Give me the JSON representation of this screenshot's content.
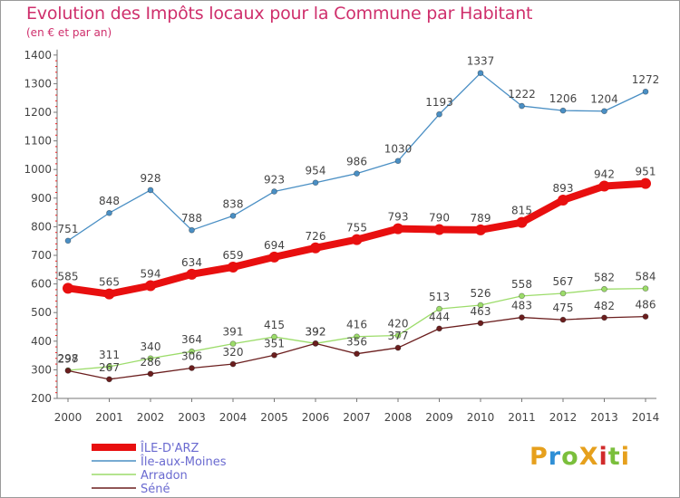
{
  "title": "Evolution des Impôts locaux pour la Commune par Habitant",
  "subtitle": "(en € et par an)",
  "logo": {
    "text": "ProXiti",
    "colors": [
      "#e6a01d",
      "#2f8fd6",
      "#7bbf3c",
      "#e6a01d",
      "#d12b2b",
      "#7bbf3c",
      "#e6a01d"
    ]
  },
  "chart_data": {
    "type": "line",
    "x": [
      "2000",
      "2001",
      "2002",
      "2003",
      "2004",
      "2005",
      "2006",
      "2007",
      "2008",
      "2009",
      "2010",
      "2011",
      "2012",
      "2013",
      "2014"
    ],
    "ylim": [
      200,
      1400
    ],
    "yticks": [
      200,
      300,
      400,
      500,
      600,
      700,
      800,
      900,
      1000,
      1100,
      1200,
      1300,
      1400
    ],
    "grid": false,
    "legend_position": "bottom-left",
    "series": [
      {
        "name": "ÎLE-D'ARZ",
        "color": "#e80f0f",
        "values": [
          585,
          565,
          594,
          634,
          659,
          694,
          726,
          755,
          793,
          790,
          789,
          815,
          893,
          942,
          951
        ]
      },
      {
        "name": "Île-aux-Moines",
        "color": "#4a8fc4",
        "values": [
          751,
          848,
          928,
          788,
          838,
          923,
          954,
          986,
          1030,
          1193,
          1337,
          1222,
          1206,
          1204,
          1272
        ]
      },
      {
        "name": "Arradon",
        "color": "#9cdc6a",
        "values": [
          298,
          311,
          340,
          364,
          391,
          415,
          392,
          416,
          420,
          513,
          526,
          558,
          567,
          582,
          584
        ]
      },
      {
        "name": "Séné",
        "color": "#6b1e1e",
        "values": [
          297,
          267,
          286,
          306,
          320,
          351,
          392,
          356,
          377,
          444,
          463,
          483,
          475,
          482,
          486
        ]
      }
    ]
  }
}
